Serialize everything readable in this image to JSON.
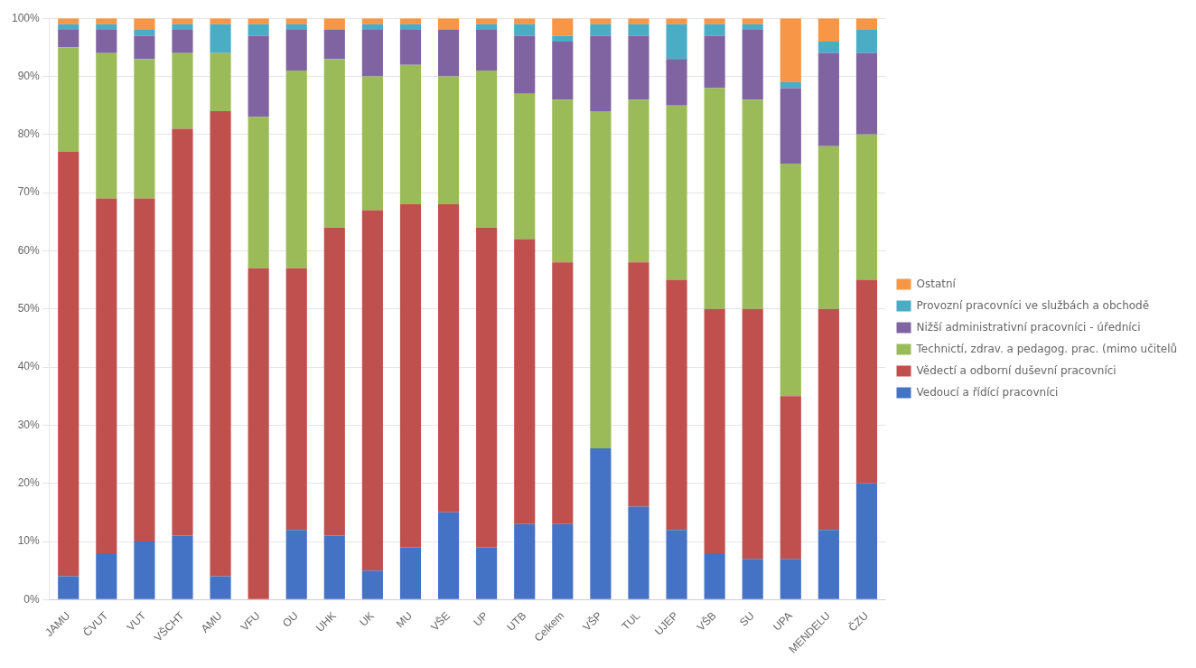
{
  "chart_data": {
    "type": "bar",
    "stacked": true,
    "categories": [
      "JAMU",
      "ČVUT",
      "VUT",
      "VŠCHT",
      "AMU",
      "VFU",
      "OU",
      "UHK",
      "UK",
      "MU",
      "VŠE",
      "UP",
      "UTB",
      "Celkem",
      "VŠP",
      "TUL",
      "UJEP",
      "VŠB",
      "SU",
      "UPA",
      "MENDELU",
      "ČZU"
    ],
    "series": [
      {
        "name": "Vedoucí a řídící pracovníci",
        "color": "#4472C4",
        "values": [
          4,
          8,
          10,
          11,
          4,
          0,
          12,
          11,
          5,
          9,
          15,
          9,
          13,
          13,
          26,
          16,
          12,
          8,
          7,
          7,
          12,
          20
        ]
      },
      {
        "name": "Vědectí a odborní duševní pracovníci",
        "color": "#C0504D",
        "values": [
          73,
          61,
          59,
          70,
          80,
          57,
          45,
          53,
          62,
          59,
          53,
          55,
          49,
          45,
          0,
          42,
          43,
          42,
          43,
          28,
          38,
          35
        ]
      },
      {
        "name": "Technictí, zdrav. a pedagog. prac. (mimo učitelů)",
        "color": "#9BBB59",
        "values": [
          18,
          25,
          24,
          13,
          10,
          26,
          34,
          29,
          23,
          24,
          22,
          27,
          25,
          28,
          58,
          28,
          30,
          38,
          36,
          40,
          28,
          25
        ]
      },
      {
        "name": "Nižší administrativní pracovníci - úředníci",
        "color": "#8064A2",
        "values": [
          3,
          4,
          4,
          4,
          0,
          14,
          7,
          5,
          8,
          6,
          8,
          7,
          10,
          10,
          13,
          11,
          8,
          9,
          12,
          13,
          16,
          14
        ]
      },
      {
        "name": "Provozní pracovníci ve službách a obchodě",
        "color": "#4BACC6",
        "values": [
          1,
          1,
          1,
          1,
          5,
          2,
          1,
          0,
          1,
          1,
          0,
          1,
          2,
          1,
          2,
          2,
          6,
          2,
          1,
          1,
          2,
          4
        ]
      },
      {
        "name": "Ostatní",
        "color": "#F79646",
        "values": [
          1,
          1,
          2,
          1,
          1,
          1,
          1,
          2,
          1,
          1,
          2,
          1,
          1,
          3,
          1,
          1,
          1,
          1,
          1,
          11,
          4,
          2
        ]
      }
    ],
    "ylim": [
      0,
      100
    ],
    "yticks": [
      {
        "value": 0,
        "label": "0%"
      },
      {
        "value": 10,
        "label": "10%"
      },
      {
        "value": 20,
        "label": "20%"
      },
      {
        "value": 30,
        "label": "30%"
      },
      {
        "value": 40,
        "label": "40%"
      },
      {
        "value": 50,
        "label": "50%"
      },
      {
        "value": 60,
        "label": "60%"
      },
      {
        "value": 70,
        "label": "70%"
      },
      {
        "value": 80,
        "label": "80%"
      },
      {
        "value": 90,
        "label": "90%"
      },
      {
        "value": 100,
        "label": "100%"
      }
    ],
    "grid": true,
    "legend": "right"
  }
}
